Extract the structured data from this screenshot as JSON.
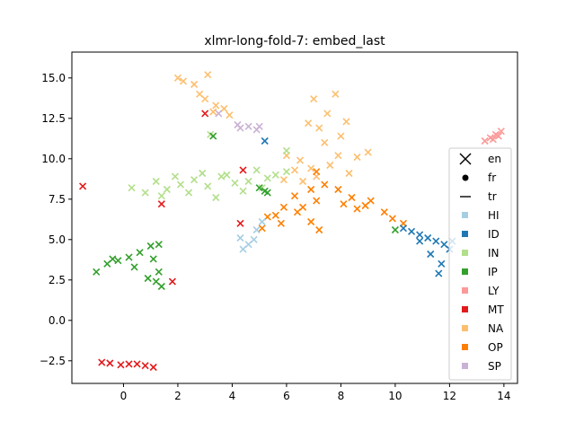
{
  "chart_data": {
    "type": "scatter",
    "title": "xlmr-long-fold-7: embed_last",
    "xlabel": "",
    "ylabel": "",
    "xlim": [
      -1.9,
      14.5
    ],
    "ylim": [
      -3.9,
      16.6
    ],
    "xticks": [
      0,
      2,
      4,
      6,
      8,
      10,
      12,
      14
    ],
    "xtick_labels": [
      "0",
      "2",
      "4",
      "6",
      "8",
      "10",
      "12",
      "14"
    ],
    "yticks": [
      -2.5,
      0.0,
      2.5,
      5.0,
      7.5,
      10.0,
      12.5,
      15.0
    ],
    "ytick_labels": [
      "−2.5",
      "0.0",
      "2.5",
      "5.0",
      "7.5",
      "10.0",
      "12.5",
      "15.0"
    ],
    "grid": false,
    "legend_position": "right",
    "legend": {
      "markers": [
        {
          "label": "en",
          "marker": "x"
        },
        {
          "label": "fr",
          "marker": "o"
        },
        {
          "label": "tr",
          "marker": "_"
        }
      ],
      "classes": [
        {
          "label": "HI",
          "color": "#a6cee3"
        },
        {
          "label": "ID",
          "color": "#1f78b4"
        },
        {
          "label": "IN",
          "color": "#b2df8a"
        },
        {
          "label": "IP",
          "color": "#33a02c"
        },
        {
          "label": "LY",
          "color": "#fb9a99"
        },
        {
          "label": "MT",
          "color": "#e31a1c"
        },
        {
          "label": "NA",
          "color": "#fdbf6f"
        },
        {
          "label": "OP",
          "color": "#ff7f00"
        },
        {
          "label": "SP",
          "color": "#cab2d6"
        }
      ]
    },
    "series": [
      {
        "name": "NA",
        "color": "#fdbf6f",
        "points": [
          [
            2.0,
            15.0
          ],
          [
            2.6,
            14.6
          ],
          [
            3.1,
            15.2
          ],
          [
            2.8,
            14.0
          ],
          [
            3.4,
            13.3
          ],
          [
            2.2,
            14.8
          ],
          [
            3.0,
            13.7
          ],
          [
            3.3,
            12.9
          ],
          [
            3.7,
            13.1
          ],
          [
            3.9,
            12.7
          ],
          [
            7.0,
            13.7
          ],
          [
            7.5,
            12.8
          ],
          [
            8.0,
            11.4
          ],
          [
            7.2,
            11.9
          ],
          [
            6.8,
            12.2
          ],
          [
            7.4,
            11.0
          ],
          [
            7.9,
            10.2
          ],
          [
            8.6,
            10.1
          ],
          [
            6.5,
            9.9
          ],
          [
            6.3,
            9.3
          ],
          [
            6.9,
            9.4
          ],
          [
            7.6,
            9.6
          ],
          [
            8.3,
            9.1
          ],
          [
            9.0,
            10.4
          ],
          [
            7.1,
            8.9
          ],
          [
            6.6,
            8.6
          ],
          [
            5.9,
            8.7
          ],
          [
            6.0,
            10.2
          ],
          [
            7.8,
            14.0
          ],
          [
            8.2,
            12.3
          ]
        ]
      },
      {
        "name": "IN",
        "color": "#b2df8a",
        "points": [
          [
            0.3,
            8.2
          ],
          [
            0.8,
            7.9
          ],
          [
            1.2,
            8.6
          ],
          [
            1.6,
            8.1
          ],
          [
            2.1,
            8.4
          ],
          [
            2.6,
            8.7
          ],
          [
            3.1,
            8.3
          ],
          [
            3.6,
            8.9
          ],
          [
            4.1,
            8.5
          ],
          [
            4.6,
            8.6
          ],
          [
            5.1,
            8.2
          ],
          [
            5.6,
            9.0
          ],
          [
            6.0,
            9.2
          ],
          [
            1.4,
            7.7
          ],
          [
            2.4,
            7.9
          ],
          [
            3.4,
            7.6
          ],
          [
            4.4,
            8.0
          ],
          [
            5.3,
            8.8
          ],
          [
            2.9,
            9.1
          ],
          [
            3.8,
            9.0
          ],
          [
            1.9,
            8.9
          ],
          [
            4.9,
            9.3
          ],
          [
            3.2,
            11.5
          ],
          [
            6.0,
            10.5
          ]
        ]
      },
      {
        "name": "IP",
        "color": "#33a02c",
        "points": [
          [
            -1.0,
            3.0
          ],
          [
            -0.6,
            3.5
          ],
          [
            -0.2,
            3.7
          ],
          [
            0.2,
            3.9
          ],
          [
            0.6,
            4.2
          ],
          [
            1.0,
            4.6
          ],
          [
            1.3,
            4.7
          ],
          [
            1.1,
            3.8
          ],
          [
            1.3,
            3.0
          ],
          [
            1.2,
            2.4
          ],
          [
            1.4,
            2.1
          ],
          [
            0.9,
            2.6
          ],
          [
            0.4,
            3.3
          ],
          [
            -0.4,
            3.8
          ],
          [
            5.0,
            8.2
          ],
          [
            5.3,
            7.9
          ],
          [
            10.0,
            5.6
          ],
          [
            3.3,
            11.4
          ],
          [
            5.2,
            8.0
          ]
        ]
      },
      {
        "name": "OP",
        "color": "#ff7f00",
        "points": [
          [
            5.9,
            7.0
          ],
          [
            6.3,
            7.7
          ],
          [
            6.9,
            8.1
          ],
          [
            7.4,
            8.4
          ],
          [
            7.9,
            8.1
          ],
          [
            8.4,
            7.6
          ],
          [
            8.9,
            7.1
          ],
          [
            6.6,
            7.0
          ],
          [
            7.1,
            7.4
          ],
          [
            5.3,
            6.4
          ],
          [
            5.8,
            6.0
          ],
          [
            6.4,
            6.7
          ],
          [
            6.9,
            6.1
          ],
          [
            7.2,
            5.6
          ],
          [
            8.1,
            7.2
          ],
          [
            9.1,
            7.4
          ],
          [
            9.6,
            6.7
          ],
          [
            9.9,
            6.3
          ],
          [
            10.3,
            6.0
          ],
          [
            5.6,
            6.5
          ],
          [
            7.1,
            9.2
          ],
          [
            8.6,
            6.9
          ],
          [
            5.1,
            5.7
          ]
        ]
      },
      {
        "name": "HI",
        "color": "#a6cee3",
        "points": [
          [
            4.3,
            5.1
          ],
          [
            4.6,
            4.7
          ],
          [
            4.9,
            5.6
          ],
          [
            5.1,
            6.1
          ],
          [
            4.4,
            4.4
          ],
          [
            4.8,
            5.0
          ]
        ]
      },
      {
        "name": "ID",
        "color": "#1f78b4",
        "points": [
          [
            10.3,
            5.7
          ],
          [
            10.6,
            5.5
          ],
          [
            10.9,
            5.3
          ],
          [
            11.2,
            5.1
          ],
          [
            11.5,
            4.9
          ],
          [
            11.8,
            4.7
          ],
          [
            11.3,
            4.1
          ],
          [
            11.7,
            3.5
          ],
          [
            11.6,
            2.9
          ],
          [
            12.0,
            4.4
          ],
          [
            12.1,
            4.9
          ],
          [
            10.9,
            4.9
          ],
          [
            5.2,
            11.1
          ]
        ]
      },
      {
        "name": "MT",
        "color": "#e31a1c",
        "points": [
          [
            -0.8,
            -2.6
          ],
          [
            -0.5,
            -2.65
          ],
          [
            -0.1,
            -2.75
          ],
          [
            0.2,
            -2.7
          ],
          [
            0.5,
            -2.7
          ],
          [
            0.8,
            -2.8
          ],
          [
            1.1,
            -2.9
          ],
          [
            -1.5,
            8.3
          ],
          [
            1.4,
            7.2
          ],
          [
            1.8,
            2.4
          ],
          [
            4.3,
            6.0
          ],
          [
            3.0,
            12.8
          ],
          [
            4.4,
            9.3
          ]
        ]
      },
      {
        "name": "LY",
        "color": "#fb9a99",
        "points": [
          [
            13.3,
            11.1
          ],
          [
            13.5,
            11.3
          ],
          [
            13.7,
            11.5
          ],
          [
            13.9,
            11.7
          ],
          [
            13.6,
            11.2
          ],
          [
            13.8,
            11.4
          ]
        ]
      },
      {
        "name": "SP",
        "color": "#cab2d6",
        "points": [
          [
            4.3,
            11.9
          ],
          [
            4.6,
            12.0
          ],
          [
            4.9,
            11.8
          ],
          [
            4.2,
            12.1
          ],
          [
            5.0,
            12.0
          ],
          [
            3.5,
            12.8
          ]
        ]
      }
    ]
  }
}
